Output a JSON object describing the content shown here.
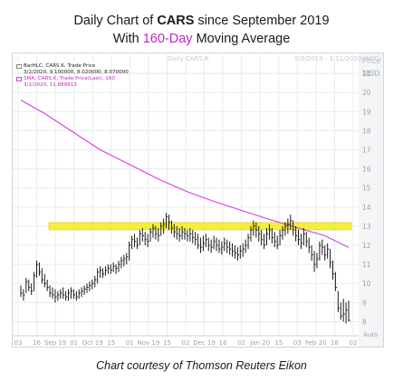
{
  "header": {
    "title_prefix": "Daily Chart of ",
    "title_ticker": "CARS",
    "title_suffix": " since September 2019",
    "subtitle_prefix": "With ",
    "subtitle_accent": "160-Day",
    "subtitle_suffix": " Moving Average",
    "faint_title": "Daily CARS.K",
    "faint_range": "9/3/2019 - 3/11/2020 (NYC)",
    "price_label": "Price",
    "currency_label": "USD"
  },
  "legend": {
    "bar_series": "BarHLC, CARS.K, Trade Price",
    "bar_values": "3/2/2020, 9.100000, 8.020000, 8.070000",
    "sma_series": "SMA, CARS.K, Trade Price(Last), 160",
    "sma_values": "3/2/2020, 11.888813"
  },
  "footer": {
    "credit": "Chart courtesy of Thomson Reuters Eikon",
    "auto_label": "Auto"
  },
  "colors": {
    "bars": "#1a1a1a",
    "sma": "#d63be0",
    "highlight": "#f3ef2c",
    "highlight_border": "#d8c200",
    "grid": "#e7ebef",
    "axis_text": "#9aa3ad",
    "accent_title": "#c026c8"
  },
  "chart_data": {
    "type": "bar",
    "subtype": "HLC",
    "title": "Daily Chart of CARS since September 2019",
    "subtitle": "With 160-Day Moving Average",
    "ylim": [
      7.5,
      22
    ],
    "y_ticks": [
      8,
      9,
      10,
      11,
      12,
      13,
      14,
      15,
      16,
      17,
      18,
      19,
      20,
      21
    ],
    "x_tick_labels": [
      "03",
      "16",
      "Sep 19",
      "01",
      "Oct 19",
      "15",
      "01",
      "Nov 19",
      "15",
      "02",
      "Dec 19",
      "16",
      "02",
      "Jan 20",
      "15",
      "03",
      "Feb 20",
      "18",
      "02"
    ],
    "grid": true,
    "legend_position": "top-left",
    "resistance_level": 13.0,
    "series": [
      {
        "name": "BarHLC, CARS.K, Trade Price",
        "style": "hlc-bar",
        "bars": [
          {
            "d": "2019-09-03",
            "h": 9.9,
            "l": 9.3,
            "c": 9.5
          },
          {
            "d": "2019-09-04",
            "h": 9.7,
            "l": 9.1,
            "c": 9.4
          },
          {
            "d": "2019-09-05",
            "h": 10.3,
            "l": 9.5,
            "c": 10.1
          },
          {
            "d": "2019-09-06",
            "h": 10.2,
            "l": 9.6,
            "c": 9.8
          },
          {
            "d": "2019-09-09",
            "h": 10.0,
            "l": 9.4,
            "c": 9.6
          },
          {
            "d": "2019-09-10",
            "h": 10.6,
            "l": 9.6,
            "c": 10.4
          },
          {
            "d": "2019-09-11",
            "h": 11.2,
            "l": 10.3,
            "c": 11.0
          },
          {
            "d": "2019-09-12",
            "h": 11.1,
            "l": 10.4,
            "c": 10.6
          },
          {
            "d": "2019-09-13",
            "h": 10.8,
            "l": 10.0,
            "c": 10.2
          },
          {
            "d": "2019-09-16",
            "h": 10.5,
            "l": 9.8,
            "c": 10.0
          },
          {
            "d": "2019-09-17",
            "h": 10.2,
            "l": 9.6,
            "c": 9.8
          },
          {
            "d": "2019-09-18",
            "h": 9.9,
            "l": 9.3,
            "c": 9.5
          },
          {
            "d": "2019-09-19",
            "h": 9.8,
            "l": 9.2,
            "c": 9.4
          },
          {
            "d": "2019-09-20",
            "h": 9.7,
            "l": 9.0,
            "c": 9.3
          },
          {
            "d": "2019-09-23",
            "h": 9.6,
            "l": 9.1,
            "c": 9.4
          },
          {
            "d": "2019-09-24",
            "h": 9.7,
            "l": 9.2,
            "c": 9.5
          },
          {
            "d": "2019-09-25",
            "h": 9.8,
            "l": 9.2,
            "c": 9.4
          },
          {
            "d": "2019-09-26",
            "h": 9.6,
            "l": 9.1,
            "c": 9.3
          },
          {
            "d": "2019-09-27",
            "h": 9.7,
            "l": 9.1,
            "c": 9.5
          },
          {
            "d": "2019-09-30",
            "h": 9.8,
            "l": 9.2,
            "c": 9.6
          },
          {
            "d": "2019-10-01",
            "h": 9.7,
            "l": 9.2,
            "c": 9.4
          },
          {
            "d": "2019-10-02",
            "h": 9.6,
            "l": 9.1,
            "c": 9.3
          },
          {
            "d": "2019-10-03",
            "h": 9.7,
            "l": 9.2,
            "c": 9.5
          },
          {
            "d": "2019-10-04",
            "h": 9.8,
            "l": 9.3,
            "c": 9.6
          },
          {
            "d": "2019-10-07",
            "h": 9.9,
            "l": 9.4,
            "c": 9.7
          },
          {
            "d": "2019-10-08",
            "h": 10.0,
            "l": 9.5,
            "c": 9.8
          },
          {
            "d": "2019-10-09",
            "h": 10.1,
            "l": 9.6,
            "c": 9.9
          },
          {
            "d": "2019-10-10",
            "h": 10.2,
            "l": 9.7,
            "c": 10.0
          },
          {
            "d": "2019-10-11",
            "h": 10.4,
            "l": 9.8,
            "c": 10.2
          },
          {
            "d": "2019-10-14",
            "h": 10.8,
            "l": 10.0,
            "c": 10.6
          },
          {
            "d": "2019-10-15",
            "h": 10.9,
            "l": 10.3,
            "c": 10.7
          },
          {
            "d": "2019-10-16",
            "h": 10.8,
            "l": 10.3,
            "c": 10.5
          },
          {
            "d": "2019-10-17",
            "h": 10.9,
            "l": 10.4,
            "c": 10.7
          },
          {
            "d": "2019-10-18",
            "h": 11.0,
            "l": 10.5,
            "c": 10.8
          },
          {
            "d": "2019-10-21",
            "h": 11.0,
            "l": 10.5,
            "c": 10.7
          },
          {
            "d": "2019-10-22",
            "h": 11.1,
            "l": 10.6,
            "c": 10.9
          },
          {
            "d": "2019-10-23",
            "h": 11.0,
            "l": 10.5,
            "c": 10.8
          },
          {
            "d": "2019-10-24",
            "h": 11.2,
            "l": 10.6,
            "c": 11.0
          },
          {
            "d": "2019-10-25",
            "h": 11.4,
            "l": 10.8,
            "c": 11.2
          },
          {
            "d": "2019-10-28",
            "h": 11.5,
            "l": 10.9,
            "c": 11.3
          },
          {
            "d": "2019-10-29",
            "h": 11.6,
            "l": 11.0,
            "c": 11.4
          },
          {
            "d": "2019-10-30",
            "h": 12.2,
            "l": 11.2,
            "c": 12.0
          },
          {
            "d": "2019-10-31",
            "h": 12.5,
            "l": 11.8,
            "c": 12.3
          },
          {
            "d": "2019-11-01",
            "h": 12.6,
            "l": 11.9,
            "c": 12.2
          },
          {
            "d": "2019-11-04",
            "h": 12.4,
            "l": 11.8,
            "c": 12.0
          },
          {
            "d": "2019-11-05",
            "h": 12.8,
            "l": 12.0,
            "c": 12.6
          },
          {
            "d": "2019-11-06",
            "h": 12.9,
            "l": 12.2,
            "c": 12.5
          },
          {
            "d": "2019-11-07",
            "h": 12.7,
            "l": 12.0,
            "c": 12.3
          },
          {
            "d": "2019-11-08",
            "h": 12.6,
            "l": 11.9,
            "c": 12.2
          },
          {
            "d": "2019-11-11",
            "h": 12.9,
            "l": 12.2,
            "c": 12.7
          },
          {
            "d": "2019-11-12",
            "h": 13.1,
            "l": 12.4,
            "c": 12.9
          },
          {
            "d": "2019-11-13",
            "h": 13.0,
            "l": 12.3,
            "c": 12.6
          },
          {
            "d": "2019-11-14",
            "h": 12.9,
            "l": 12.2,
            "c": 12.5
          },
          {
            "d": "2019-11-15",
            "h": 13.2,
            "l": 12.5,
            "c": 13.0
          },
          {
            "d": "2019-11-18",
            "h": 13.4,
            "l": 12.6,
            "c": 13.1
          },
          {
            "d": "2019-11-19",
            "h": 13.7,
            "l": 12.9,
            "c": 13.5
          },
          {
            "d": "2019-11-20",
            "h": 13.6,
            "l": 12.8,
            "c": 13.2
          },
          {
            "d": "2019-11-21",
            "h": 13.3,
            "l": 12.6,
            "c": 12.9
          },
          {
            "d": "2019-11-22",
            "h": 13.1,
            "l": 12.4,
            "c": 12.7
          },
          {
            "d": "2019-11-25",
            "h": 13.0,
            "l": 12.3,
            "c": 12.6
          },
          {
            "d": "2019-11-26",
            "h": 12.9,
            "l": 12.2,
            "c": 12.5
          },
          {
            "d": "2019-11-27",
            "h": 13.0,
            "l": 12.3,
            "c": 12.7
          },
          {
            "d": "2019-11-29",
            "h": 12.9,
            "l": 12.3,
            "c": 12.6
          },
          {
            "d": "2019-12-02",
            "h": 12.8,
            "l": 12.2,
            "c": 12.5
          },
          {
            "d": "2019-12-03",
            "h": 12.9,
            "l": 12.2,
            "c": 12.6
          },
          {
            "d": "2019-12-04",
            "h": 12.8,
            "l": 12.1,
            "c": 12.4
          },
          {
            "d": "2019-12-05",
            "h": 12.7,
            "l": 12.0,
            "c": 12.3
          },
          {
            "d": "2019-12-06",
            "h": 12.6,
            "l": 11.8,
            "c": 12.0
          },
          {
            "d": "2019-12-09",
            "h": 12.4,
            "l": 11.6,
            "c": 11.9
          },
          {
            "d": "2019-12-10",
            "h": 12.5,
            "l": 11.7,
            "c": 12.1
          },
          {
            "d": "2019-12-11",
            "h": 12.6,
            "l": 11.9,
            "c": 12.3
          },
          {
            "d": "2019-12-12",
            "h": 12.4,
            "l": 11.7,
            "c": 12.0
          },
          {
            "d": "2019-12-13",
            "h": 12.3,
            "l": 11.6,
            "c": 11.9
          },
          {
            "d": "2019-12-16",
            "h": 12.5,
            "l": 11.8,
            "c": 12.2
          },
          {
            "d": "2019-12-17",
            "h": 12.4,
            "l": 11.7,
            "c": 12.0
          },
          {
            "d": "2019-12-18",
            "h": 12.3,
            "l": 11.6,
            "c": 11.8
          },
          {
            "d": "2019-12-19",
            "h": 12.2,
            "l": 11.5,
            "c": 11.9
          },
          {
            "d": "2019-12-20",
            "h": 12.4,
            "l": 11.7,
            "c": 12.1
          },
          {
            "d": "2019-12-23",
            "h": 12.3,
            "l": 11.6,
            "c": 11.9
          },
          {
            "d": "2019-12-24",
            "h": 12.2,
            "l": 11.5,
            "c": 11.8
          },
          {
            "d": "2019-12-26",
            "h": 12.1,
            "l": 11.4,
            "c": 11.7
          },
          {
            "d": "2019-12-27",
            "h": 12.0,
            "l": 11.3,
            "c": 11.6
          },
          {
            "d": "2019-12-30",
            "h": 11.9,
            "l": 11.2,
            "c": 11.5
          },
          {
            "d": "2019-12-31",
            "h": 12.0,
            "l": 11.3,
            "c": 11.7
          },
          {
            "d": "2020-01-02",
            "h": 12.1,
            "l": 11.4,
            "c": 11.8
          },
          {
            "d": "2020-01-03",
            "h": 12.3,
            "l": 11.6,
            "c": 12.0
          },
          {
            "d": "2020-01-06",
            "h": 12.6,
            "l": 11.8,
            "c": 12.4
          },
          {
            "d": "2020-01-07",
            "h": 13.0,
            "l": 12.2,
            "c": 12.8
          },
          {
            "d": "2020-01-08",
            "h": 13.3,
            "l": 12.5,
            "c": 13.0
          },
          {
            "d": "2020-01-09",
            "h": 13.2,
            "l": 12.4,
            "c": 12.8
          },
          {
            "d": "2020-01-10",
            "h": 13.0,
            "l": 12.2,
            "c": 12.6
          },
          {
            "d": "2020-01-13",
            "h": 12.8,
            "l": 12.0,
            "c": 12.3
          },
          {
            "d": "2020-01-14",
            "h": 12.6,
            "l": 11.8,
            "c": 12.0
          },
          {
            "d": "2020-01-15",
            "h": 12.9,
            "l": 12.0,
            "c": 12.6
          },
          {
            "d": "2020-01-16",
            "h": 13.1,
            "l": 12.3,
            "c": 12.8
          },
          {
            "d": "2020-01-17",
            "h": 12.9,
            "l": 12.1,
            "c": 12.4
          },
          {
            "d": "2020-01-21",
            "h": 12.7,
            "l": 11.9,
            "c": 12.2
          },
          {
            "d": "2020-01-22",
            "h": 12.5,
            "l": 11.8,
            "c": 12.0
          },
          {
            "d": "2020-01-23",
            "h": 12.8,
            "l": 12.0,
            "c": 12.5
          },
          {
            "d": "2020-01-24",
            "h": 13.0,
            "l": 12.3,
            "c": 12.8
          },
          {
            "d": "2020-01-27",
            "h": 13.2,
            "l": 12.5,
            "c": 13.0
          },
          {
            "d": "2020-01-28",
            "h": 13.4,
            "l": 12.6,
            "c": 13.1
          },
          {
            "d": "2020-01-29",
            "h": 13.6,
            "l": 12.8,
            "c": 13.3
          },
          {
            "d": "2020-01-30",
            "h": 13.3,
            "l": 12.5,
            "c": 12.8
          },
          {
            "d": "2020-01-31",
            "h": 13.0,
            "l": 12.2,
            "c": 12.5
          },
          {
            "d": "2020-02-03",
            "h": 12.8,
            "l": 12.0,
            "c": 12.3
          },
          {
            "d": "2020-02-04",
            "h": 12.6,
            "l": 11.8,
            "c": 12.1
          },
          {
            "d": "2020-02-05",
            "h": 12.9,
            "l": 12.0,
            "c": 12.6
          },
          {
            "d": "2020-02-06",
            "h": 12.7,
            "l": 11.9,
            "c": 12.2
          },
          {
            "d": "2020-02-07",
            "h": 12.4,
            "l": 11.6,
            "c": 11.9
          },
          {
            "d": "2020-02-10",
            "h": 12.0,
            "l": 11.2,
            "c": 11.5
          },
          {
            "d": "2020-02-11",
            "h": 11.7,
            "l": 10.6,
            "c": 11.0
          },
          {
            "d": "2020-02-12",
            "h": 11.6,
            "l": 10.8,
            "c": 11.3
          },
          {
            "d": "2020-02-13",
            "h": 12.2,
            "l": 11.2,
            "c": 12.0
          },
          {
            "d": "2020-02-14",
            "h": 12.3,
            "l": 11.5,
            "c": 11.9
          },
          {
            "d": "2020-02-18",
            "h": 12.0,
            "l": 11.2,
            "c": 11.5
          },
          {
            "d": "2020-02-19",
            "h": 12.1,
            "l": 11.3,
            "c": 11.8
          },
          {
            "d": "2020-02-20",
            "h": 11.8,
            "l": 10.8,
            "c": 11.1
          },
          {
            "d": "2020-02-21",
            "h": 11.2,
            "l": 10.2,
            "c": 10.5
          },
          {
            "d": "2020-02-24",
            "h": 10.6,
            "l": 9.6,
            "c": 9.8
          },
          {
            "d": "2020-02-25",
            "h": 9.6,
            "l": 8.5,
            "c": 8.7
          },
          {
            "d": "2020-02-26",
            "h": 9.0,
            "l": 8.1,
            "c": 8.3
          },
          {
            "d": "2020-02-27",
            "h": 9.2,
            "l": 8.0,
            "c": 8.4
          },
          {
            "d": "2020-02-28",
            "h": 9.0,
            "l": 7.9,
            "c": 8.6
          },
          {
            "d": "2020-03-02",
            "h": 9.1,
            "l": 8.02,
            "c": 8.07
          }
        ]
      },
      {
        "name": "SMA, CARS.K, Trade Price(Last), 160",
        "style": "line",
        "points": [
          {
            "d": "2019-09-03",
            "v": 19.6
          },
          {
            "d": "2019-09-16",
            "v": 18.9
          },
          {
            "d": "2019-10-01",
            "v": 17.9
          },
          {
            "d": "2019-10-15",
            "v": 17.0
          },
          {
            "d": "2019-11-01",
            "v": 16.1
          },
          {
            "d": "2019-11-15",
            "v": 15.4
          },
          {
            "d": "2019-12-02",
            "v": 14.8
          },
          {
            "d": "2019-12-16",
            "v": 14.3
          },
          {
            "d": "2020-01-02",
            "v": 13.8
          },
          {
            "d": "2020-01-15",
            "v": 13.4
          },
          {
            "d": "2020-02-03",
            "v": 12.9
          },
          {
            "d": "2020-02-18",
            "v": 12.5
          },
          {
            "d": "2020-03-02",
            "v": 11.89
          }
        ]
      }
    ]
  }
}
